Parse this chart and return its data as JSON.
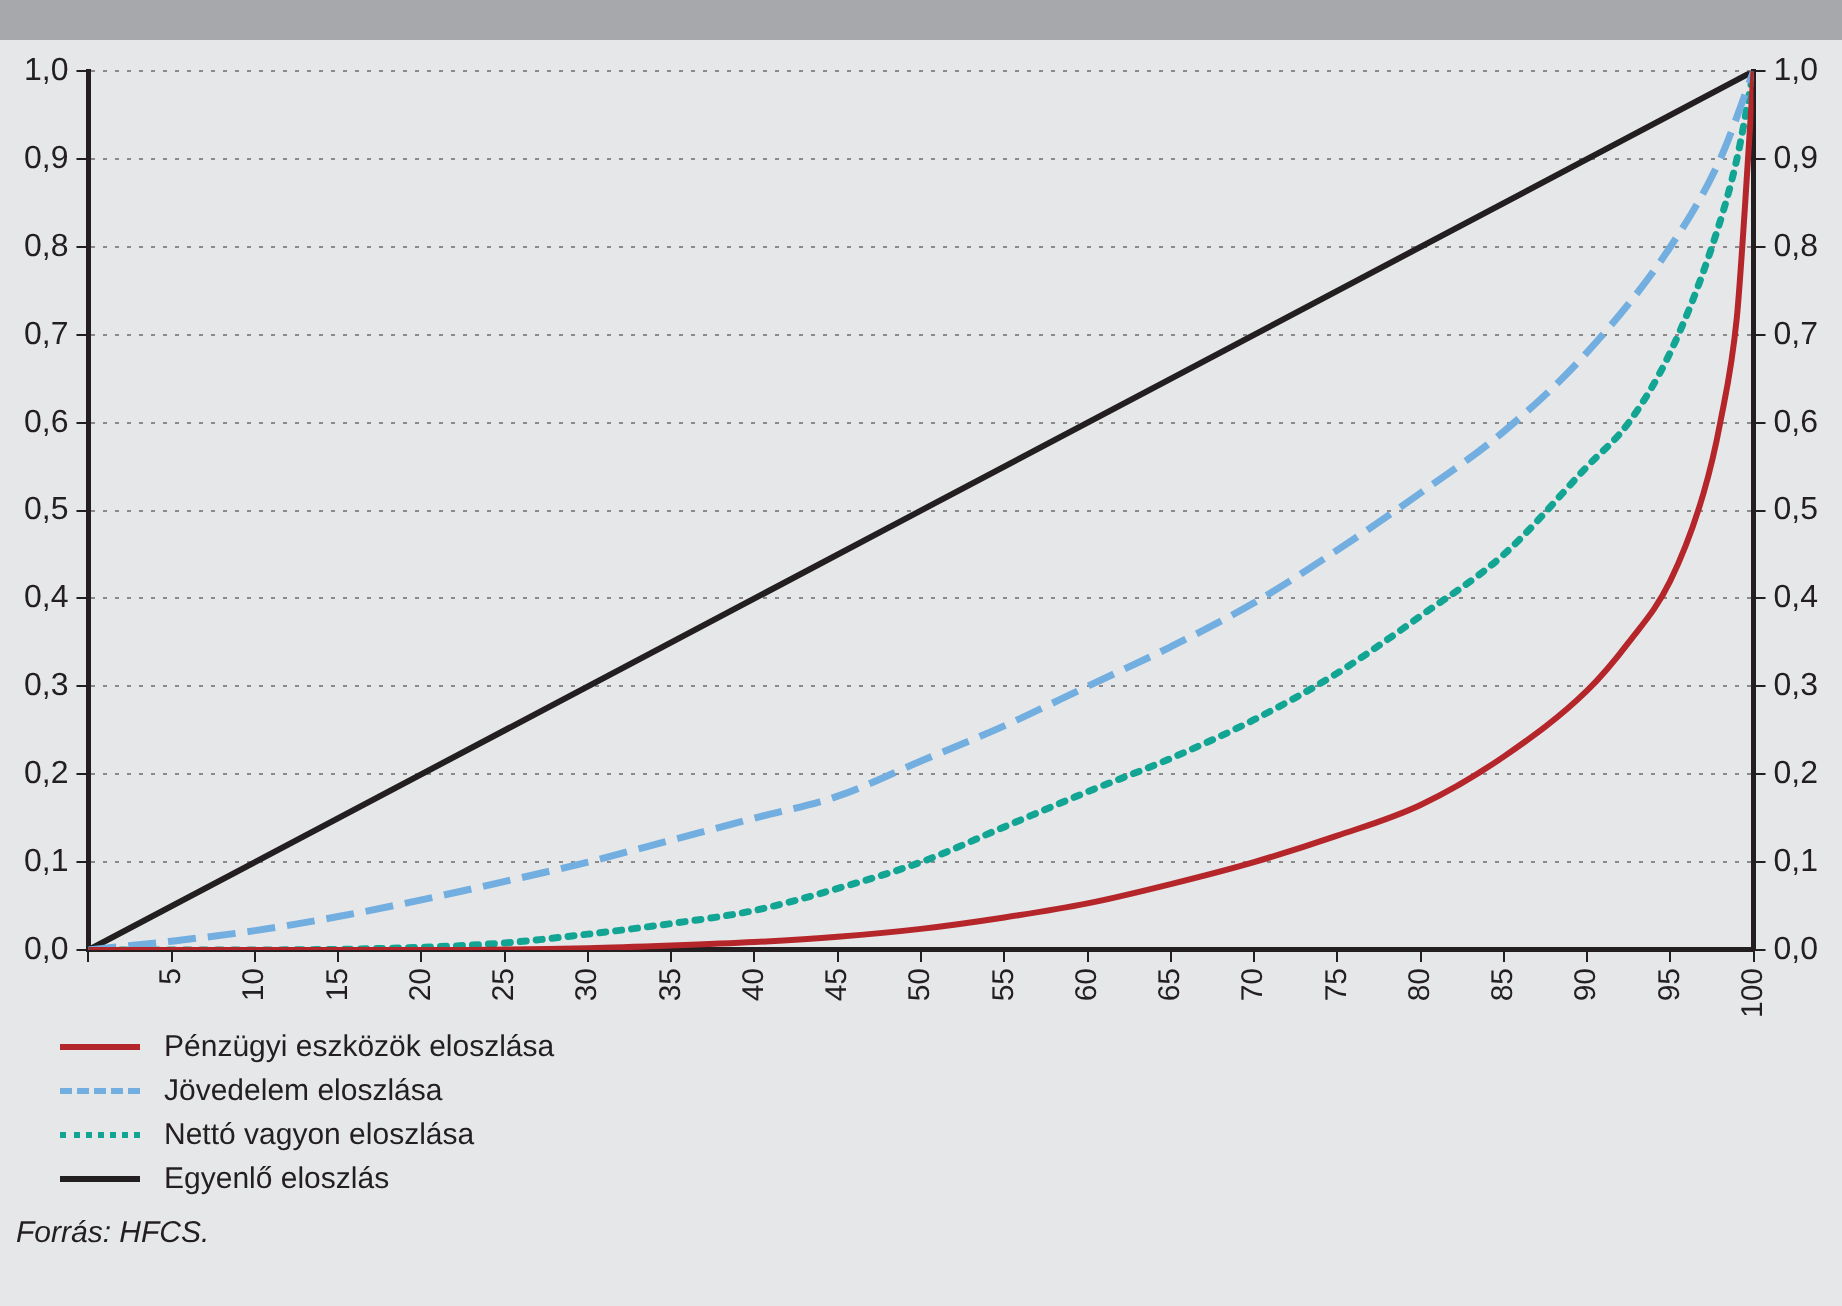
{
  "chart_data": {
    "type": "line",
    "xlim": [
      0,
      100
    ],
    "xticks": [
      {
        "value": 0,
        "label": null
      },
      5,
      10,
      15,
      20,
      25,
      30,
      35,
      40,
      45,
      50,
      55,
      60,
      65,
      70,
      75,
      80,
      85,
      90,
      95,
      100
    ],
    "ylim": [
      0,
      1
    ],
    "yticks": [
      {
        "value": 0,
        "label": "0,0"
      },
      {
        "value": 0.1,
        "label": "0,1"
      },
      {
        "value": 0.2,
        "label": "0,2"
      },
      {
        "value": 0.3,
        "label": "0,3"
      },
      {
        "value": 0.4,
        "label": "0,4"
      },
      {
        "value": 0.5,
        "label": "0,5"
      },
      {
        "value": 0.6,
        "label": "0,6"
      },
      {
        "value": 0.7,
        "label": "0,7"
      },
      {
        "value": 0.8,
        "label": "0,8"
      },
      {
        "value": 0.9,
        "label": "0,9"
      },
      {
        "value": 1,
        "label": "1,0"
      }
    ],
    "y2lim": [
      0,
      1
    ],
    "y2ticks": [
      {
        "value": 0,
        "label": "0,0"
      },
      {
        "value": 0.1,
        "label": "0,1"
      },
      {
        "value": 0.2,
        "label": "0,2"
      },
      {
        "value": 0.3,
        "label": "0,3"
      },
      {
        "value": 0.4,
        "label": "0,4"
      },
      {
        "value": 0.5,
        "label": "0,5"
      },
      {
        "value": 0.6,
        "label": "0,6"
      },
      {
        "value": 0.7,
        "label": "0,7"
      },
      {
        "value": 0.8,
        "label": "0,8"
      },
      {
        "value": 0.9,
        "label": "0,9"
      },
      {
        "value": 1,
        "label": "1,0"
      }
    ],
    "grid": "y",
    "legend": "bottom left",
    "marker": "none",
    "series": [
      {
        "name": "Pénzügyi eszközök eloszlása",
        "color": "#b5262b",
        "line_style": "solid",
        "x": [
          0,
          20,
          30,
          35,
          40,
          45,
          50,
          55,
          60,
          65,
          70,
          75,
          80,
          85,
          90,
          92.5,
          95,
          97,
          98,
          99,
          99.5,
          100
        ],
        "values": [
          0,
          0,
          0.002,
          0.005,
          0.009,
          0.015,
          0.024,
          0.037,
          0.053,
          0.075,
          0.1,
          0.13,
          0.165,
          0.22,
          0.295,
          0.35,
          0.42,
          0.52,
          0.6,
          0.72,
          0.85,
          1
        ]
      },
      {
        "name": "Jövedelem eloszlása",
        "color": "#72aedf",
        "line_style": "dashed",
        "x": [
          0,
          5,
          10,
          15,
          20,
          25,
          30,
          35,
          40,
          45,
          50,
          55,
          60,
          65,
          70,
          75,
          80,
          85,
          90,
          95,
          98,
          100
        ],
        "values": [
          0,
          0.01,
          0.022,
          0.038,
          0.057,
          0.078,
          0.1,
          0.125,
          0.15,
          0.175,
          0.215,
          0.255,
          0.3,
          0.345,
          0.395,
          0.455,
          0.52,
          0.59,
          0.68,
          0.8,
          0.9,
          1
        ]
      },
      {
        "name": "Nettó vagyon eloszlása",
        "color": "#12a594",
        "line_style": "dotted",
        "x": [
          0,
          10,
          20,
          25,
          30,
          35,
          40,
          45,
          50,
          55,
          60,
          65,
          70,
          75,
          80,
          85,
          90,
          92.5,
          95,
          97.5,
          99,
          100
        ],
        "values": [
          0,
          0,
          0.003,
          0.008,
          0.018,
          0.03,
          0.045,
          0.07,
          0.1,
          0.14,
          0.18,
          0.218,
          0.262,
          0.315,
          0.38,
          0.45,
          0.55,
          0.6,
          0.68,
          0.8,
          0.9,
          1
        ]
      },
      {
        "name": "Egyenlő eloszlás",
        "color": "#231f20",
        "line_style": "solid",
        "x": [
          0,
          100
        ],
        "values": [
          0,
          1
        ]
      }
    ],
    "annotations": [
      "Forrás: HFCS."
    ]
  }
}
